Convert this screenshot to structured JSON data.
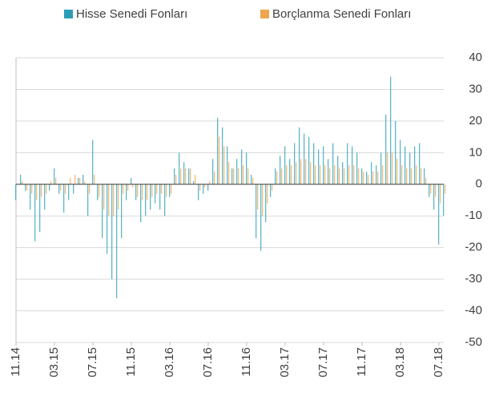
{
  "chart_data": {
    "type": "bar",
    "categories": [
      "11.14",
      null,
      null,
      null,
      null,
      null,
      null,
      null,
      "03.15",
      null,
      null,
      null,
      null,
      null,
      null,
      null,
      "07.15",
      null,
      null,
      null,
      null,
      null,
      null,
      null,
      "11.15",
      null,
      null,
      null,
      null,
      null,
      null,
      null,
      "03.16",
      null,
      null,
      null,
      null,
      null,
      null,
      null,
      "07.16",
      null,
      null,
      null,
      null,
      null,
      null,
      null,
      "11.16",
      null,
      null,
      null,
      null,
      null,
      null,
      null,
      "03.17",
      null,
      null,
      null,
      null,
      null,
      null,
      null,
      "07.17",
      null,
      null,
      null,
      null,
      null,
      null,
      null,
      "11.17",
      null,
      null,
      null,
      null,
      null,
      null,
      null,
      "03.18",
      null,
      null,
      null,
      null,
      null,
      null,
      null,
      "07.18",
      null
    ],
    "series": [
      {
        "name": "Hisse Senedi Fonları",
        "color": "#2a9db5",
        "values": [
          -5,
          3,
          -2,
          -8,
          -18,
          -15,
          -8,
          -2,
          5,
          -3,
          -9,
          -5,
          -3,
          2,
          3,
          -10,
          14,
          -5,
          -17,
          -22,
          -30,
          -36,
          -17,
          -5,
          2,
          -5,
          -12,
          -10,
          -8,
          -6,
          -8,
          -10,
          -4,
          5,
          10,
          7,
          5,
          1,
          -5,
          -3,
          -2,
          8,
          21,
          18,
          12,
          5,
          8,
          11,
          10,
          3,
          -17,
          -21,
          -12,
          -4,
          5,
          9,
          12,
          8,
          13,
          18,
          16,
          15,
          13,
          11,
          12,
          8,
          13,
          9,
          7,
          13,
          12,
          10,
          5,
          4,
          7,
          6,
          10,
          22,
          34,
          20,
          14,
          12,
          10,
          12,
          13,
          5,
          -4,
          -8,
          -19,
          -10
        ]
      },
      {
        "name": "Borçlanma Senedi Fonları",
        "color": "#eda550",
        "values": [
          0,
          1,
          -2,
          -3,
          -5,
          -4,
          -3,
          1,
          2,
          -2,
          -3,
          2,
          3,
          2,
          1,
          -3,
          3,
          -4,
          -8,
          -10,
          -10,
          -8,
          -3,
          -2,
          -1,
          -4,
          -5,
          -5,
          -4,
          -3,
          -3,
          -4,
          -3,
          3,
          5,
          5,
          5,
          3,
          -2,
          -1,
          1,
          4,
          15,
          12,
          7,
          5,
          5,
          6,
          5,
          2,
          -8,
          -10,
          -6,
          -2,
          4,
          5,
          6,
          6,
          7,
          8,
          8,
          7,
          6,
          6,
          6,
          5,
          6,
          5,
          5,
          6,
          6,
          5,
          4,
          3,
          4,
          4,
          6,
          10,
          10,
          8,
          6,
          5,
          5,
          6,
          5,
          2,
          -3,
          -4,
          -6,
          -3
        ]
      }
    ],
    "ylim": [
      -50,
      40
    ],
    "yticks": [
      -50,
      -40,
      -30,
      -20,
      -10,
      0,
      10,
      20,
      30,
      40
    ],
    "grid": true,
    "legend": "top"
  }
}
